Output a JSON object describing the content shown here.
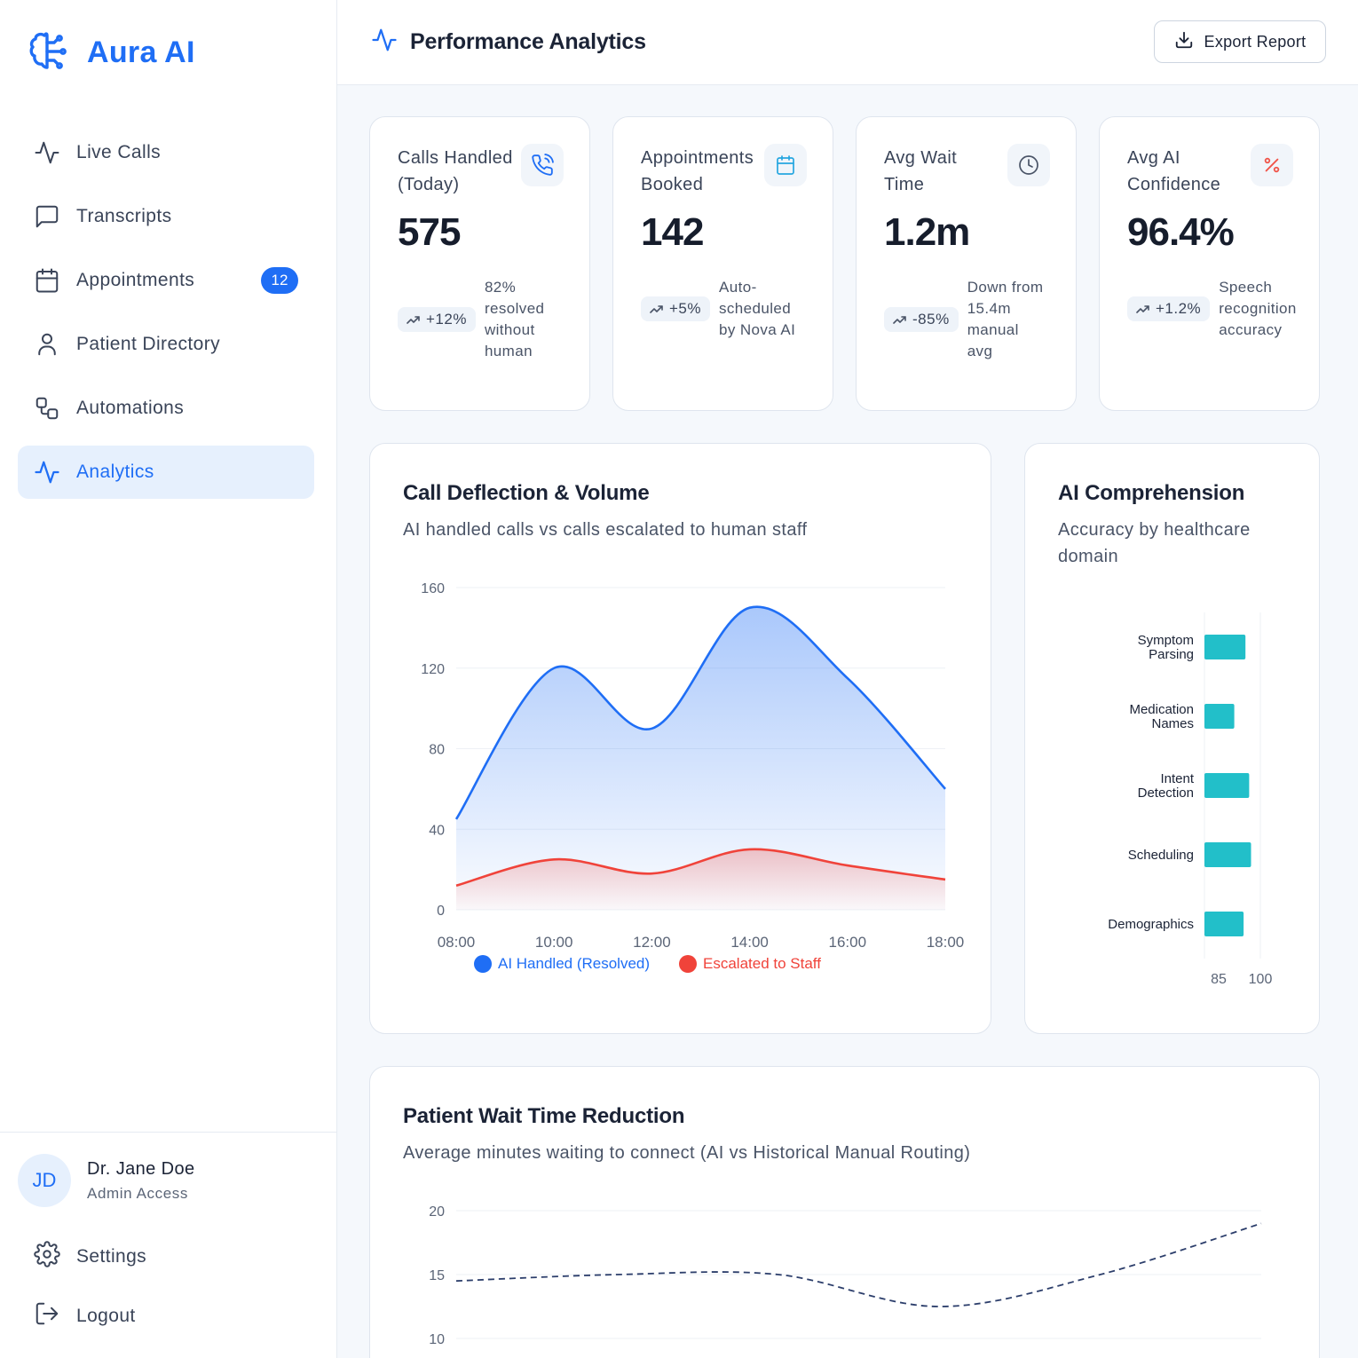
{
  "brand": {
    "name": "Aura AI",
    "accent": "#1f6ef5"
  },
  "sidebar": {
    "items": [
      {
        "label": "Live Calls",
        "icon": "activity-icon",
        "active": false
      },
      {
        "label": "Transcripts",
        "icon": "message-square-icon",
        "active": false
      },
      {
        "label": "Appointments",
        "icon": "calendar-icon",
        "active": false,
        "badge": "12"
      },
      {
        "label": "Patient Directory",
        "icon": "user-icon",
        "active": false
      },
      {
        "label": "Automations",
        "icon": "workflow-icon",
        "active": false
      },
      {
        "label": "Analytics",
        "icon": "activity-icon",
        "active": true
      }
    ],
    "user": {
      "initials": "JD",
      "name": "Dr. Jane Doe",
      "role": "Admin Access"
    },
    "settings_label": "Settings",
    "logout_label": "Logout"
  },
  "header": {
    "title": "Performance Analytics",
    "export_label": "Export Report"
  },
  "stats": [
    {
      "label": "Calls Handled (Today)",
      "value": "575",
      "trend": "+12%",
      "note": "82% resolved without human",
      "icon": "phone-call-icon",
      "icon_color": "#1f6ef5"
    },
    {
      "label": "Appointments Booked",
      "value": "142",
      "trend": "+5%",
      "note": "Auto-scheduled by Nova AI",
      "icon": "calendar-icon",
      "icon_color": "#26a6e0"
    },
    {
      "label": "Avg Wait Time",
      "value": "1.2m",
      "trend": "-85%",
      "note": "Down from 15.4m manual avg",
      "icon": "clock-icon",
      "icon_color": "#4a5467"
    },
    {
      "label": "Avg AI Confidence",
      "value": "96.4%",
      "trend": "+1.2%",
      "note": "Speech recognition accuracy",
      "icon": "percent-icon",
      "icon_color": "#f0554a"
    }
  ],
  "deflection": {
    "title": "Call Deflection & Volume",
    "subtitle": "AI handled calls vs calls escalated to human staff"
  },
  "comprehension": {
    "title": "AI Comprehension",
    "subtitle": "Accuracy by healthcare domain"
  },
  "waittime": {
    "title": "Patient Wait Time Reduction",
    "subtitle": "Average minutes waiting to connect (AI vs Historical Manual Routing)"
  },
  "chart_data": [
    {
      "type": "area",
      "x": [
        "08:00",
        "10:00",
        "12:00",
        "14:00",
        "16:00",
        "18:00"
      ],
      "series": [
        {
          "name": "AI Handled (Resolved)",
          "color": "#1f6ef5",
          "values": [
            45,
            120,
            90,
            150,
            115,
            60
          ]
        },
        {
          "name": "Escalated to Staff",
          "color": "#f0433a",
          "values": [
            12,
            25,
            18,
            30,
            22,
            15
          ]
        }
      ],
      "ylim": [
        0,
        160
      ],
      "yticks": [
        0,
        40,
        80,
        120,
        160
      ],
      "grid": true,
      "legend": "bottom"
    },
    {
      "type": "bar",
      "orientation": "horizontal",
      "categories": [
        "Symptom Parsing",
        "Medication Names",
        "Intent Detection",
        "Scheduling",
        "Demographics"
      ],
      "values": [
        96,
        93,
        97,
        97.5,
        95.5
      ],
      "color": "#22bfc9",
      "xlim": [
        85,
        100
      ],
      "xticks": [
        85,
        100
      ]
    },
    {
      "type": "line",
      "series": [
        {
          "name": "",
          "color": "#2c3e6b",
          "dashed": true,
          "values": [
            14.5,
            15,
            15,
            12.5,
            15,
            19
          ]
        }
      ],
      "ylim": [
        10,
        20
      ],
      "yticks": [
        10,
        15,
        20
      ],
      "grid": true
    }
  ]
}
